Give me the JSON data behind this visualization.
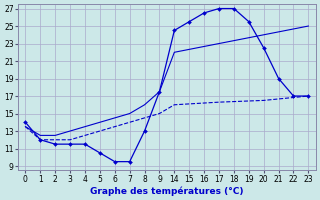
{
  "title": "Graphe des températures (°C)",
  "bg_color": "#cce8e8",
  "grid_color": "#aaaacc",
  "line_color": "#0000cc",
  "xtick_labels": [
    "0",
    "1",
    "2",
    "3",
    "4",
    "5",
    "6",
    "7",
    "8",
    "9",
    "14",
    "15",
    "16",
    "17",
    "18",
    "19",
    "20",
    "21",
    "22",
    "23"
  ],
  "yticks": [
    9,
    11,
    13,
    15,
    17,
    19,
    21,
    23,
    25,
    27
  ],
  "ylim": [
    8.5,
    27.5
  ],
  "series1_y": [
    14,
    12,
    11.5,
    11.5,
    11.5,
    10.5,
    9.5,
    9.5,
    13,
    17.5,
    24.5,
    25.5,
    26.5,
    27,
    27,
    25.5,
    22.5,
    19,
    17,
    17
  ],
  "series2_y": [
    13.5,
    12,
    12,
    12,
    12.5,
    13,
    13.5,
    14,
    14.5,
    15,
    16,
    16.3,
    16.5,
    17
  ],
  "series2_x_indices": [
    0,
    1,
    2,
    3,
    4,
    5,
    6,
    7,
    8,
    9,
    10,
    13,
    16,
    19
  ],
  "series3_y": [
    13.5,
    12.5,
    12.5,
    13,
    13.5,
    14,
    14.5,
    15,
    16,
    17.5,
    22,
    23,
    24,
    25
  ],
  "series3_x_indices": [
    0,
    1,
    2,
    3,
    4,
    5,
    6,
    7,
    8,
    9,
    10,
    13,
    16,
    19
  ]
}
